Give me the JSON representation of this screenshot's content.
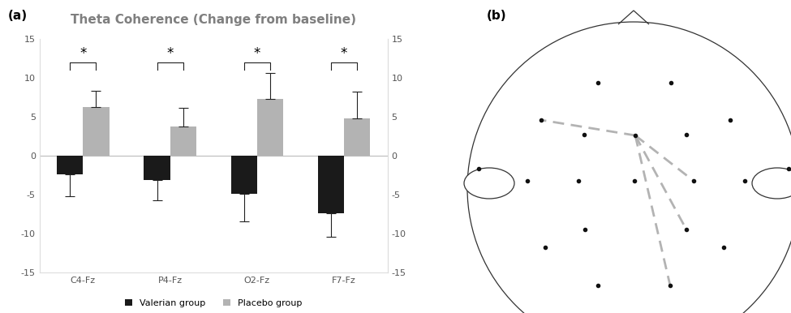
{
  "chart_data": {
    "type": "bar",
    "panel": "(a)",
    "title": "Theta Coherence (Change from baseline)",
    "categories": [
      "C4-Fz",
      "P4-Fz",
      "O2-Fz",
      "F7-Fz"
    ],
    "series": [
      {
        "name": "Valerian group",
        "color": "#1a1a1a",
        "values": [
          -2.4,
          -3.1,
          -4.9,
          -7.4
        ],
        "errors": [
          2.8,
          2.6,
          3.5,
          3.0
        ]
      },
      {
        "name": "Placebo group",
        "color": "#b3b3b3",
        "values": [
          6.3,
          3.8,
          7.3,
          4.8
        ],
        "errors": [
          2.0,
          2.4,
          3.3,
          3.4
        ]
      }
    ],
    "ylim": [
      -15,
      15
    ],
    "yticks": [
      -15,
      -10,
      -5,
      0,
      5,
      10,
      15
    ],
    "y2lim": [
      -15,
      15
    ],
    "y2ticks": [
      -15,
      -10,
      -5,
      0,
      5,
      10,
      15
    ],
    "grid": false,
    "legend": "bottom",
    "annotations": [
      {
        "text": "*",
        "category": "C4-Fz"
      },
      {
        "text": "*",
        "category": "P4-Fz"
      },
      {
        "text": "*",
        "category": "O2-Fz"
      },
      {
        "text": "*",
        "category": "F7-Fz"
      }
    ]
  },
  "diagram": {
    "panel": "(b)"
  }
}
